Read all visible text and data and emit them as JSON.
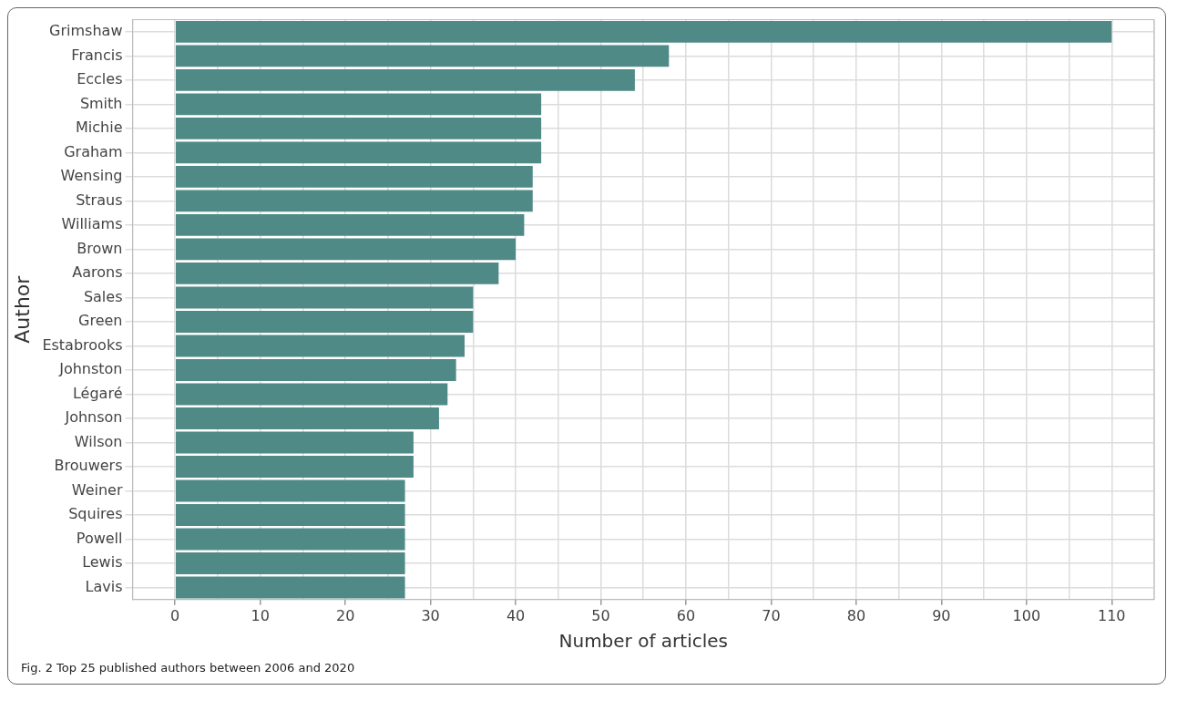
{
  "chart_data": {
    "type": "bar",
    "orientation": "horizontal",
    "xlabel": "Number of articles",
    "ylabel": "Author",
    "categories": [
      "Grimshaw",
      "Francis",
      "Eccles",
      "Smith",
      "Michie",
      "Graham",
      "Wensing",
      "Straus",
      "Williams",
      "Brown",
      "Aarons",
      "Sales",
      "Green",
      "Estabrooks",
      "Johnston",
      "Légaré",
      "Johnson",
      "Wilson",
      "Brouwers",
      "Weiner",
      "Squires",
      "Powell",
      "Lewis",
      "Lavis"
    ],
    "values": [
      110,
      58,
      54,
      43,
      43,
      43,
      42,
      42,
      41,
      40,
      38,
      35,
      35,
      34,
      33,
      32,
      31,
      28,
      28,
      27,
      27,
      27,
      27,
      27
    ],
    "color": "#4f8a87",
    "xlim": [
      -5,
      115
    ],
    "xticks": [
      {
        "value": -5,
        "label": null
      },
      0,
      {
        "value": 5,
        "label": null
      },
      10,
      {
        "value": 15,
        "label": null
      },
      20,
      {
        "value": 25,
        "label": null
      },
      30,
      {
        "value": 35,
        "label": null
      },
      40,
      {
        "value": 45,
        "label": null
      },
      50,
      {
        "value": 55,
        "label": null
      },
      60,
      {
        "value": 65,
        "label": null
      },
      70,
      {
        "value": 75,
        "label": null
      },
      80,
      {
        "value": 85,
        "label": null
      },
      90,
      {
        "value": 95,
        "label": null
      },
      100,
      {
        "value": 105,
        "label": null
      },
      110,
      {
        "value": 115,
        "label": null
      }
    ],
    "grid": true,
    "legend": false,
    "annotations": [
      "Fig. 2 Top 25 published authors between 2006 and 2020"
    ]
  }
}
